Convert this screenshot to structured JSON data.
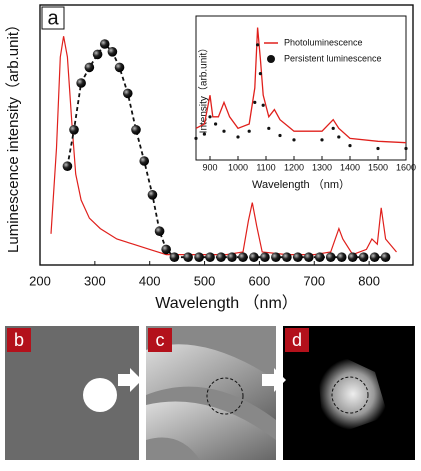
{
  "chart_data": [
    {
      "type": "line",
      "panel_label": "a",
      "x_label": "Wavelength （nm）",
      "y_label": "Luminescence intensity（arb.unit）",
      "xlim": [
        200,
        880
      ],
      "xticks": [
        200,
        300,
        400,
        500,
        600,
        700,
        800
      ],
      "ylim": [
        0,
        1
      ],
      "series": [
        {
          "color": "#e0201c",
          "marker": "none",
          "x": [
            220,
            230,
            237,
            243,
            250,
            258,
            265,
            275,
            290,
            310,
            340,
            370,
            400,
            430,
            460,
            500,
            540,
            570,
            580,
            587,
            595,
            605,
            650,
            700,
            730,
            745,
            752,
            770,
            795,
            805,
            815,
            822,
            830,
            850
          ],
          "values": [
            0.12,
            0.45,
            0.8,
            0.88,
            0.8,
            0.55,
            0.35,
            0.25,
            0.18,
            0.14,
            0.1,
            0.08,
            0.06,
            0.04,
            0.04,
            0.04,
            0.04,
            0.05,
            0.17,
            0.24,
            0.15,
            0.05,
            0.04,
            0.04,
            0.05,
            0.14,
            0.1,
            0.04,
            0.06,
            0.1,
            0.08,
            0.22,
            0.1,
            0.05
          ]
        },
        {
          "color": "#111111",
          "marker": "sphere",
          "line": "dashed",
          "x": [
            250,
            262,
            275,
            290,
            305,
            318,
            332,
            345,
            360,
            375,
            390,
            405,
            418,
            430,
            445,
            470,
            490,
            510,
            530,
            550,
            570,
            590,
            610,
            630,
            650,
            670,
            690,
            710,
            730,
            750,
            770,
            790,
            810,
            830
          ],
          "values": [
            0.38,
            0.52,
            0.7,
            0.76,
            0.81,
            0.85,
            0.82,
            0.76,
            0.66,
            0.52,
            0.4,
            0.27,
            0.13,
            0.06,
            0.03,
            0.03,
            0.03,
            0.03,
            0.03,
            0.03,
            0.03,
            0.03,
            0.03,
            0.03,
            0.03,
            0.03,
            0.03,
            0.03,
            0.03,
            0.03,
            0.03,
            0.03,
            0.03,
            0.03
          ]
        }
      ]
    },
    {
      "type": "line",
      "x_label": "Wavelength （nm）",
      "y_label": "Intensity（arb.unit）",
      "xlim": [
        850,
        1600
      ],
      "xticks": [
        900,
        1000,
        1100,
        1200,
        1300,
        1400,
        1500,
        1600
      ],
      "ylim": [
        0,
        1
      ],
      "series": [
        {
          "name": "Photoluminescence",
          "color": "#e0201c",
          "marker": "none",
          "x": [
            850,
            880,
            900,
            910,
            930,
            950,
            970,
            1000,
            1040,
            1060,
            1070,
            1080,
            1090,
            1110,
            1130,
            1150,
            1200,
            1300,
            1340,
            1360,
            1400,
            1500,
            1600
          ],
          "values": [
            0.22,
            0.25,
            0.45,
            0.3,
            0.3,
            0.4,
            0.3,
            0.22,
            0.25,
            0.5,
            0.92,
            0.7,
            0.45,
            0.3,
            0.35,
            0.28,
            0.2,
            0.2,
            0.28,
            0.22,
            0.15,
            0.13,
            0.12
          ]
        },
        {
          "name": "Persistent luminescence",
          "color": "#111111",
          "marker": "dot",
          "x": [
            850,
            880,
            900,
            920,
            950,
            1000,
            1040,
            1060,
            1070,
            1080,
            1090,
            1110,
            1150,
            1200,
            1300,
            1340,
            1360,
            1400,
            1500,
            1600
          ],
          "values": [
            0.15,
            0.18,
            0.3,
            0.25,
            0.2,
            0.16,
            0.2,
            0.4,
            0.8,
            0.6,
            0.38,
            0.22,
            0.17,
            0.14,
            0.14,
            0.22,
            0.16,
            0.1,
            0.08,
            0.08
          ]
        }
      ]
    }
  ],
  "panels": [
    "b",
    "c",
    "d"
  ]
}
